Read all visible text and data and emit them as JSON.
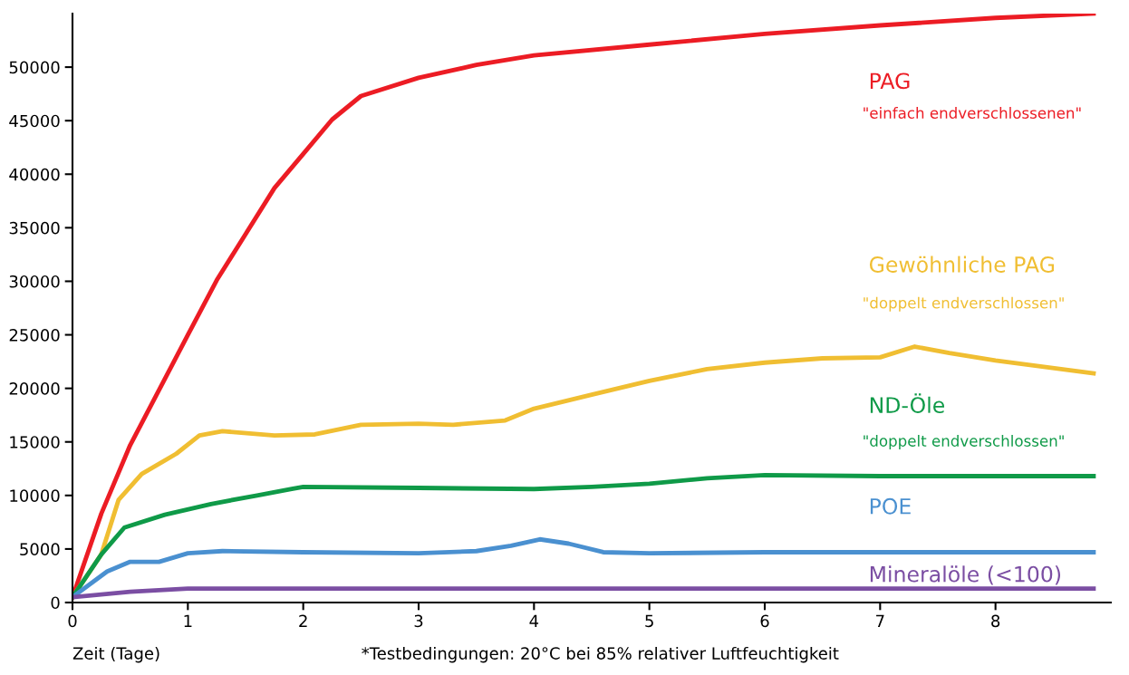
{
  "chart_data": {
    "type": "line",
    "xlabel": "Zeit (Tage)",
    "xlim": [
      0,
      9
    ],
    "ylim": [
      0,
      55000
    ],
    "xticks": [
      0,
      1,
      2,
      3,
      4,
      5,
      6,
      7,
      8
    ],
    "yticks": [
      0,
      5000,
      10000,
      15000,
      20000,
      25000,
      30000,
      35000,
      40000,
      45000,
      50000
    ],
    "grid": false,
    "legend": false,
    "marker": "none",
    "line_style": "solid",
    "series": [
      {
        "name": "PAG",
        "color": "#ec1c24",
        "x": [
          0,
          0.25,
          0.5,
          1,
          1.25,
          1.5,
          1.75,
          2,
          2.25,
          2.5,
          3,
          3.5,
          4,
          5,
          6,
          7,
          8,
          8.85
        ],
        "values": [
          500,
          8300,
          14700,
          25000,
          30100,
          34400,
          38700,
          41900,
          45100,
          47300,
          49000,
          50200,
          51100,
          52100,
          53100,
          53900,
          54600,
          55000
        ]
      },
      {
        "name": "Gewöhnliche PAG",
        "color": "#f0be32",
        "x": [
          0,
          0.25,
          0.4,
          0.6,
          0.9,
          1.1,
          1.3,
          1.75,
          2.1,
          2.5,
          3,
          3.3,
          3.75,
          4,
          4.5,
          5,
          5.5,
          6,
          6.5,
          7,
          7.3,
          7.6,
          8,
          8.85
        ],
        "values": [
          500,
          4500,
          9600,
          12000,
          13900,
          15600,
          16000,
          15600,
          15700,
          16600,
          16700,
          16600,
          17000,
          18100,
          19400,
          20700,
          21800,
          22400,
          22800,
          22900,
          23900,
          23300,
          22600,
          21400
        ]
      },
      {
        "name": "ND-Öle",
        "color": "#0f9a48",
        "x": [
          0,
          0.25,
          0.45,
          0.8,
          1.2,
          1.6,
          1.9,
          2,
          3,
          4,
          4.5,
          5,
          5.5,
          6,
          7,
          8.85
        ],
        "values": [
          500,
          4500,
          7000,
          8200,
          9200,
          10000,
          10600,
          10800,
          10700,
          10600,
          10800,
          11100,
          11600,
          11900,
          11800,
          11800
        ]
      },
      {
        "name": "POE",
        "color": "#4a90d0",
        "x": [
          0,
          0.3,
          0.5,
          0.75,
          1,
          1.3,
          2,
          3,
          3.5,
          3.8,
          4.05,
          4.3,
          4.6,
          5,
          6,
          8.85
        ],
        "values": [
          500,
          2900,
          3800,
          3800,
          4600,
          4800,
          4700,
          4600,
          4800,
          5300,
          5900,
          5500,
          4700,
          4600,
          4700,
          4700
        ]
      },
      {
        "name": "Mineralöle (<100)",
        "color": "#7b4ea3",
        "x": [
          0,
          0.5,
          1,
          8.85
        ],
        "values": [
          500,
          1000,
          1300,
          1300
        ]
      }
    ],
    "annotations": [
      "\"einfach endverschlossenen\"",
      "\"doppelt endverschlossen\"",
      "\"doppelt endverschlossen\"",
      "*Testbedingungen: 20°C bei 85% relativer Luftfeuchtigkeit"
    ]
  }
}
